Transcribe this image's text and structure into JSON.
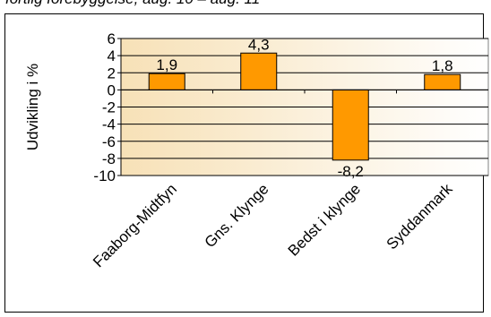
{
  "title": "fortlig forebyggelse, aug. 10 – aug. 11",
  "chart_data": {
    "type": "bar",
    "ylabel": "Udvikling i %",
    "xlabel": "",
    "categories": [
      "Faaborg-Midtfyn",
      "Gns. Klynge",
      "Bedst i klynge",
      "Syddanmark"
    ],
    "values": [
      1.9,
      4.3,
      -8.2,
      1.8
    ],
    "value_labels": [
      "1,9",
      "4,3",
      "-8,2",
      "1,8"
    ],
    "ylim": [
      -10,
      6
    ],
    "yticks": [
      6,
      4,
      2,
      0,
      -2,
      -4,
      -6,
      -8,
      -10
    ],
    "grid": true,
    "legend": "none",
    "colors": {
      "bar_fill": "#ff9900",
      "bar_stroke": "#000000",
      "plot_bg_left": "#f7e1b7",
      "plot_bg_right": "#ffffff"
    }
  }
}
